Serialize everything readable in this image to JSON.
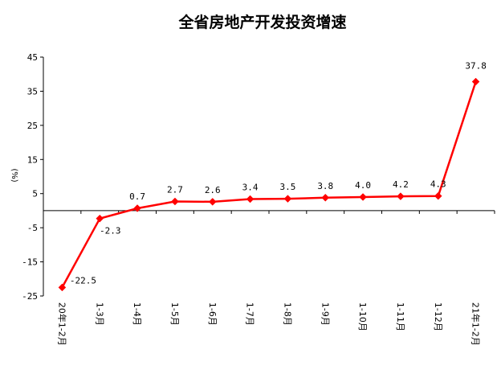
{
  "chart_data": {
    "type": "line",
    "title": "全省房地产开发投资增速",
    "ylabel": "(%)",
    "xlabel": "",
    "ylim": [
      -25,
      45
    ],
    "yticks": [
      45,
      35,
      25,
      15,
      5,
      -5,
      -15,
      -25
    ],
    "categories": [
      "20年1-2月",
      "1-3月",
      "1-4月",
      "1-5月",
      "1-6月",
      "1-7月",
      "1-8月",
      "1-9月",
      "1-10月",
      "1-11月",
      "1-12月",
      "21年1-2月"
    ],
    "series": [
      {
        "values": [
          -22.5,
          -2.3,
          0.7,
          2.7,
          2.6,
          3.4,
          3.5,
          3.8,
          4.0,
          4.2,
          4.3,
          37.8
        ],
        "labels": [
          "-22.5",
          "-2.3",
          "0.7",
          "2.7",
          "2.6",
          "3.4",
          "3.5",
          "3.8",
          "4.0",
          "4.2",
          "4.3",
          "37.8"
        ],
        "color": "#ff0000"
      }
    ],
    "grid": false,
    "legend": "none",
    "colors": {
      "line": "#ff0000",
      "axis": "#000000",
      "background": "#ffffff"
    }
  }
}
